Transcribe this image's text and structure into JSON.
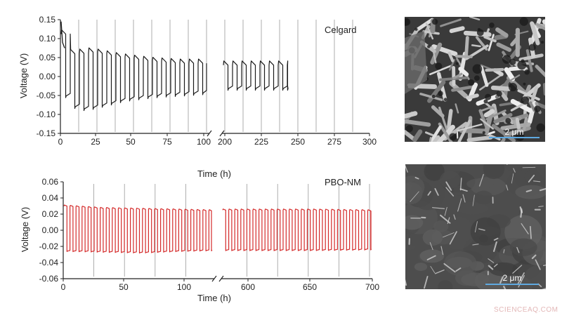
{
  "chart_data": [
    {
      "type": "line",
      "label": "Celgard",
      "xlabel": "",
      "ylabel": "Voltage (V)",
      "ylim": [
        -0.15,
        0.15
      ],
      "yticks": [
        "0.15",
        "0.10",
        "0.05",
        "0.00",
        "-0.05",
        "-0.10",
        "-0.15"
      ],
      "xticks": [
        "0",
        "25",
        "50",
        "75",
        "100",
        "200",
        "225",
        "250",
        "275",
        "300"
      ],
      "axis_break": "between 100 and 200",
      "color": "#1a1a1a",
      "series": [
        {
          "x": [
            0,
            1,
            2,
            5,
            10,
            20,
            40,
            60,
            80,
            100,
            200,
            220,
            243
          ],
          "upper": [
            0.145,
            0.075,
            0.065,
            0.06,
            0.06,
            0.065,
            0.05,
            0.04,
            0.035,
            0.035,
            0.03,
            0.03,
            0.03
          ],
          "lower": [
            -0.04,
            -0.05,
            -0.06,
            -0.07,
            -0.08,
            -0.075,
            -0.055,
            -0.045,
            -0.04,
            -0.035,
            -0.025,
            -0.025,
            -0.025
          ]
        }
      ],
      "end_hours": 243
    },
    {
      "type": "line",
      "label": "PBO-NM",
      "xlabel": "Time (h)",
      "ylabel": "Voltage (V)",
      "ylim": [
        -0.06,
        0.06
      ],
      "yticks": [
        "0.06",
        "0.04",
        "0.02",
        "0.00",
        "-0.02",
        "-0.04",
        "-0.06"
      ],
      "xticks": [
        "0",
        "50",
        "100",
        "600",
        "650",
        "700"
      ],
      "axis_break": "between 100 and 600",
      "color": "#d42a2a",
      "series": [
        {
          "x": [
            0,
            25,
            50,
            75,
            100,
            125,
            600,
            650,
            700
          ],
          "upper": [
            0.03,
            0.027,
            0.026,
            0.025,
            0.024,
            0.024,
            0.025,
            0.025,
            0.024
          ],
          "lower": [
            -0.025,
            -0.026,
            -0.027,
            -0.025,
            -0.024,
            -0.024,
            -0.024,
            -0.024,
            -0.023
          ]
        }
      ]
    }
  ],
  "top_xlabel": "Time (h)",
  "sem_scale_label": "2 μm",
  "watermark": "SCIENCEAQ.COM",
  "colors": {
    "axis": "#222222",
    "gridline": "#888888",
    "scalebar": "#5fa9e0"
  }
}
